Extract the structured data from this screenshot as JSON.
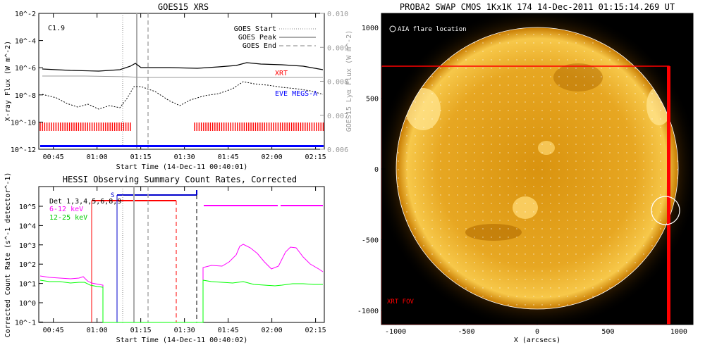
{
  "colors": {
    "xrt": "#ff0000",
    "eve": "#0000ff",
    "goes_grey": "#aaaaaa",
    "hessi_6_12": "#ff00ff",
    "hessi_12_25": "#00ff00",
    "sun_bg": "#000000"
  },
  "chart_data": [
    {
      "type": "line",
      "title": "GOES15 XRS",
      "annotation": "C1.9",
      "xlabel": "Start Time (14-Dec-11 00:40:01)",
      "ylabel": "X-ray Flux (W m^-2)",
      "ylabel_right": "GOES15 Lyα Flux (W m^-2)",
      "x_ticks": [
        "00:45",
        "01:00",
        "01:15",
        "01:30",
        "01:45",
        "02:00",
        "02:15"
      ],
      "y_ticks": [
        "10^-2",
        "10^-4",
        "10^-6",
        "10^-8",
        "10^-10",
        "10^-12"
      ],
      "y_ticks_right": [
        "0.010",
        "0.009",
        "0.008",
        "0.007",
        "0.006"
      ],
      "legend": [
        "GOES Start",
        "GOES Peak",
        "GOES End"
      ],
      "series_labels": [
        "XRT",
        "EVE MEGS-A"
      ],
      "goes_start": "01:10",
      "goes_peak": "01:13",
      "goes_end": "01:19",
      "series": [
        {
          "name": "XRT",
          "note": "observing intervals (red ticks)",
          "intervals": [
            [
              "00:40",
              "01:12"
            ],
            [
              "01:33",
              "02:18"
            ]
          ]
        },
        {
          "name": "EVE MEGS-A",
          "note": "continuous coverage",
          "intervals": [
            [
              "00:40",
              "02:18"
            ]
          ]
        }
      ]
    },
    {
      "type": "line",
      "title": "HESSI Observing Summary Count Rates, Corrected",
      "xlabel": "Start Time (14-Dec-11 00:40:02)",
      "ylabel": "Corrected Count Rate (s^-1 detector^-1)",
      "x_ticks": [
        "00:45",
        "01:00",
        "01:15",
        "01:30",
        "01:45",
        "02:00",
        "02:15"
      ],
      "y_ticks": [
        "10^5",
        "10^4",
        "10^3",
        "10^2",
        "10^1",
        "10^0",
        "10^-1"
      ],
      "legend": [
        "Det 1,3,4,5,6,8,9",
        "6-12 keV",
        "12-25 keV"
      ],
      "flag_label": "S",
      "series": [
        {
          "name": "6-12 keV",
          "color": "#ff00ff"
        },
        {
          "name": "12-25 keV",
          "color": "#00ff00"
        }
      ]
    },
    {
      "type": "scatter",
      "title": "PROBA2 SWAP CMOS 1Kx1K 174 14-Dec-2011 01:15:14.269 UT",
      "xlabel": "X (arcsecs)",
      "x_ticks": [
        "-1000",
        "-500",
        "0",
        "500",
        "1000"
      ],
      "y_ticks": [
        "1000",
        "500",
        "0",
        "-500",
        "-1000"
      ],
      "legend": [
        "AIA flare location"
      ],
      "fov_label": "XRT FOV",
      "flare_location": {
        "x": 930,
        "y": -300
      },
      "xrt_fov": {
        "x": [
          -1100,
          940
        ],
        "y": [
          -1100,
          730
        ]
      }
    }
  ]
}
